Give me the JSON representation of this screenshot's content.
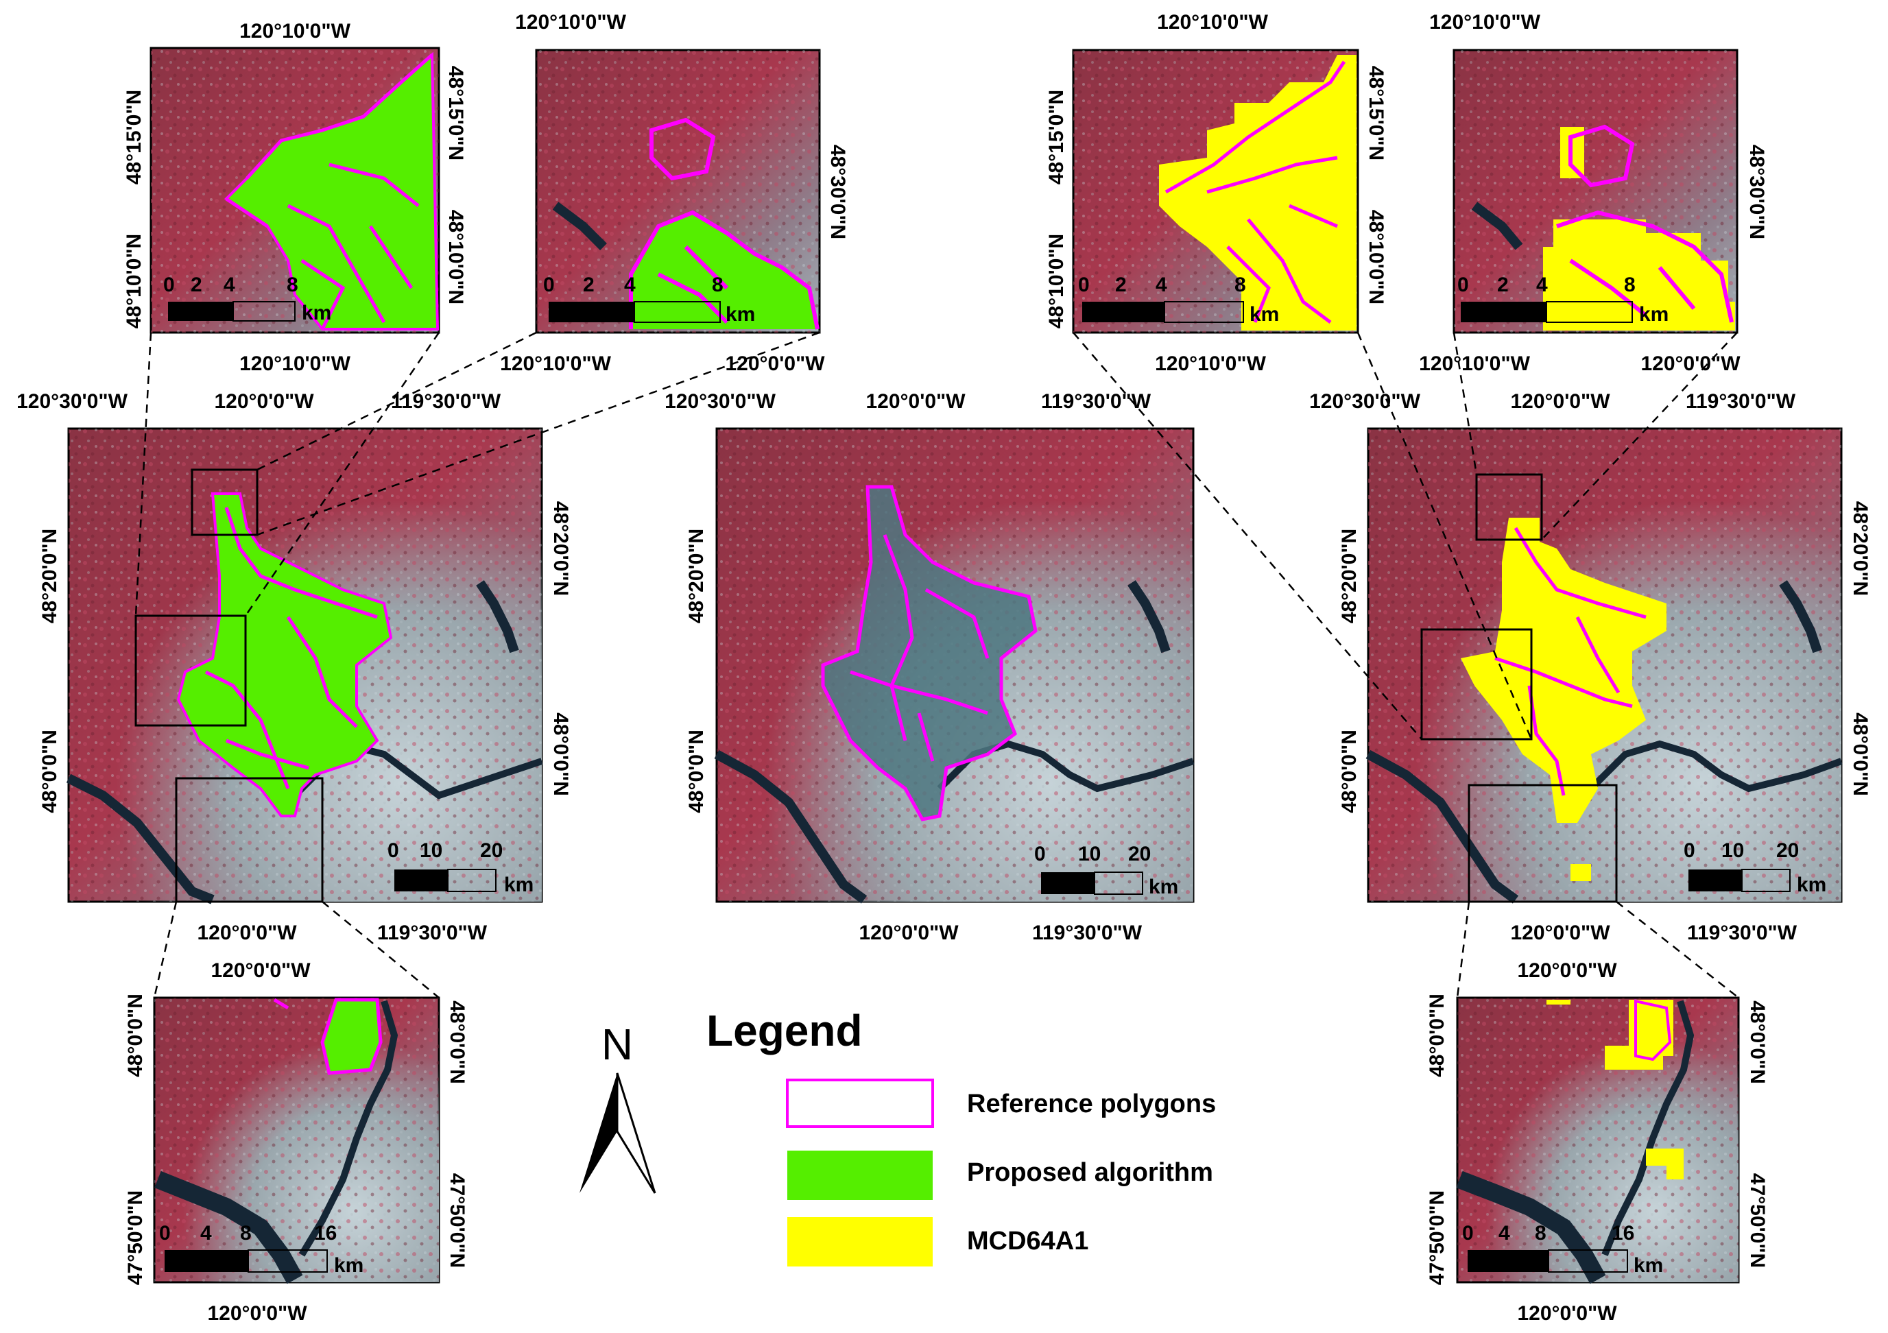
{
  "colors": {
    "reference_polygons": "#ff00ff",
    "proposed_algorithm": "#55ee00",
    "mcd64a1": "#ffff00",
    "background_vegetation": "#a8384e",
    "background_bare": "#9aa7ad",
    "water": "#152635"
  },
  "labels": {
    "lon_120_10": "120°10'0\"W",
    "lon_120_0": "120°0'0\"W",
    "lon_120_30": "120°30'0\"W",
    "lon_119_30": "119°30'0\"W",
    "lat_48_15": "48°15'0\"N",
    "lat_48_10": "48°10'0\"N",
    "lat_48_30": "48°30'0\"N",
    "lat_48_20": "48°20'0\"N",
    "lat_48_0": "48°0'0\"N",
    "lat_47_50": "47°50'0\"N"
  },
  "scalebars": {
    "small_top": {
      "ticks": [
        "0",
        "2",
        "4",
        "8"
      ],
      "unit": "km"
    },
    "main": {
      "ticks": [
        "0",
        "10",
        "20"
      ],
      "unit": "km"
    },
    "small_bottom": {
      "ticks": [
        "0",
        "4",
        "8",
        "16"
      ],
      "unit": "km"
    }
  },
  "north_arrow": {
    "letter": "N"
  },
  "legend": {
    "title": "Legend",
    "items": [
      {
        "label": "Reference polygons",
        "symbol": "outline",
        "color": "#ff00ff"
      },
      {
        "label": "Proposed algorithm",
        "symbol": "fill",
        "color": "#55ee00"
      },
      {
        "label": "MCD64A1",
        "symbol": "fill",
        "color": "#ffff00"
      }
    ]
  },
  "panels": [
    {
      "id": "inset-top-left-1",
      "top_label": "120°10'0\"W",
      "bottom_label": "120°10'0\"W",
      "left_labels": [
        "48°15'0\"N",
        "48°10'0\"N"
      ],
      "right_labels": [
        "48°15'0\"N",
        "48°10'0\"N"
      ],
      "overlay": "proposed-algorithm"
    },
    {
      "id": "inset-top-left-2",
      "top_label": "120°10'0\"W",
      "bottom_labels": [
        "120°10'0\"W",
        "120°0'0\"W"
      ],
      "right_labels": [
        "48°30'0\"N"
      ],
      "overlay": "proposed-algorithm"
    },
    {
      "id": "main-left",
      "top_labels": [
        "120°30'0\"W",
        "120°0'0\"W",
        "119°30'0\"W"
      ],
      "bottom_labels": [
        "120°0'0\"W",
        "119°30'0\"W"
      ],
      "left_labels": [
        "48°20'0\"N",
        "48°0'0\"N"
      ],
      "right_labels": [
        "48°20'0\"N",
        "48°0'0\"N"
      ],
      "overlay": "proposed-algorithm"
    },
    {
      "id": "main-center",
      "top_labels": [
        "120°30'0\"W",
        "120°0'0\"W",
        "119°30'0\"W"
      ],
      "bottom_labels": [
        "120°0'0\"W",
        "119°30'0\"W"
      ],
      "left_labels": [
        "48°20'0\"N",
        "48°0'0\"N"
      ],
      "overlay": "reference-only"
    },
    {
      "id": "main-right",
      "top_labels": [
        "120°30'0\"W",
        "120°0'0\"W",
        "119°30'0\"W"
      ],
      "bottom_labels": [
        "120°0'0\"W",
        "119°30'0\"W"
      ],
      "left_labels": [
        "48°20'0\"N",
        "48°0'0\"N"
      ],
      "right_labels": [
        "48°20'0\"N",
        "48°0'0\"N"
      ],
      "overlay": "mcd64a1"
    },
    {
      "id": "inset-top-right-1",
      "top_label": "120°10'0\"W",
      "bottom_label": "120°10'0\"W",
      "left_labels": [
        "48°15'0\"N",
        "48°10'0\"N"
      ],
      "right_labels": [
        "48°15'0\"N",
        "48°10'0\"N"
      ],
      "overlay": "mcd64a1"
    },
    {
      "id": "inset-top-right-2",
      "top_label": "120°10'0\"W",
      "bottom_labels": [
        "120°10'0\"W",
        "120°0'0\"W"
      ],
      "right_labels": [
        "48°30'0\"N"
      ],
      "overlay": "mcd64a1"
    },
    {
      "id": "inset-bottom-left",
      "top_label": "120°0'0\"W",
      "bottom_label": "120°0'0\"W",
      "left_labels": [
        "48°0'0\"N",
        "47°50'0\"N"
      ],
      "right_labels": [
        "48°0'0\"N",
        "47°50'0\"N"
      ],
      "overlay": "proposed-algorithm"
    },
    {
      "id": "inset-bottom-right",
      "top_label": "120°0'0\"W",
      "bottom_label": "120°0'0\"W",
      "left_labels": [
        "48°0'0\"N",
        "47°50'0\"N"
      ],
      "right_labels": [
        "48°0'0\"N",
        "47°50'0\"N"
      ],
      "overlay": "mcd64a1"
    }
  ]
}
